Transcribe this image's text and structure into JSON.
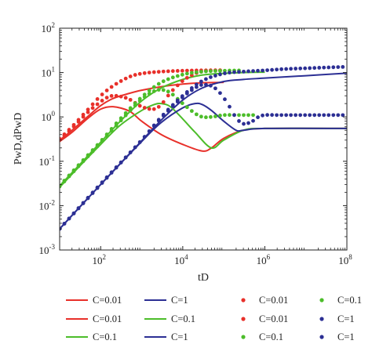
{
  "chart_data": {
    "type": "line",
    "xlabel": "tD",
    "ylabel": "PwD,dPwD",
    "x_scale": "log",
    "y_scale": "log",
    "xlim": [
      10,
      100000000
    ],
    "ylim": [
      0.001,
      100
    ],
    "x_ticks": [
      {
        "base": "10",
        "exp": "2",
        "value": 100
      },
      {
        "base": "10",
        "exp": "4",
        "value": 10000
      },
      {
        "base": "10",
        "exp": "6",
        "value": 1000000
      },
      {
        "base": "10",
        "exp": "8",
        "value": 100000000
      }
    ],
    "y_ticks": [
      {
        "base": "10",
        "exp": "-3",
        "value": 0.001
      },
      {
        "base": "10",
        "exp": "-2",
        "value": 0.01
      },
      {
        "base": "10",
        "exp": "-1",
        "value": 0.1
      },
      {
        "base": "10",
        "exp": "0",
        "value": 1
      },
      {
        "base": "10",
        "exp": "1",
        "value": 10
      },
      {
        "base": "10",
        "exp": "2",
        "value": 100
      }
    ],
    "grid": false,
    "legend_position": "bottom",
    "series": [
      {
        "name": "C=0.01",
        "style": "line",
        "color": "#e8302a",
        "x": [
          10,
          20,
          50,
          100,
          200,
          500,
          1000,
          3000,
          10000,
          30000,
          100000
        ],
        "y": [
          0.3,
          0.5,
          1.05,
          1.8,
          2.6,
          3.4,
          4.0,
          4.8,
          5.5,
          5.9,
          6.0
        ]
      },
      {
        "name": "C=0.01",
        "style": "line",
        "color": "#e8302a",
        "x": [
          10,
          20,
          50,
          100,
          200,
          500,
          1000,
          3000,
          10000,
          30000,
          50000,
          100000,
          300000,
          1000000,
          100000000
        ],
        "y": [
          0.28,
          0.45,
          0.95,
          1.5,
          1.7,
          1.35,
          0.8,
          0.4,
          0.24,
          0.17,
          0.2,
          0.33,
          0.5,
          0.55,
          0.55
        ]
      },
      {
        "name": "C=0.1",
        "style": "line",
        "color": "#4cbd2a",
        "x": [
          10,
          30,
          100,
          300,
          1000,
          3000,
          10000,
          30000,
          100000,
          300000,
          1000000
        ],
        "y": [
          0.028,
          0.082,
          0.27,
          0.8,
          2.3,
          4.5,
          7.0,
          8.8,
          9.6,
          10.0,
          10.2
        ]
      },
      {
        "name": "C=1",
        "style": "line",
        "color": "#2c2f94",
        "x": [
          10,
          100,
          1000,
          3000,
          10000,
          30000,
          100000,
          300000,
          1000000,
          10000000,
          100000000
        ],
        "y": [
          0.003,
          0.03,
          0.29,
          0.85,
          2.4,
          4.5,
          6.3,
          7.0,
          7.5,
          8.5,
          9.7
        ]
      },
      {
        "name": "C=0.1",
        "style": "line",
        "color": "#4cbd2a",
        "x": [
          10,
          30,
          100,
          300,
          1000,
          2000,
          3000,
          5000,
          10000,
          20000,
          50000,
          100000,
          300000,
          1000000,
          100000000
        ],
        "y": [
          0.026,
          0.076,
          0.24,
          0.65,
          1.4,
          1.9,
          2.0,
          1.7,
          0.9,
          0.45,
          0.2,
          0.3,
          0.5,
          0.55,
          0.55
        ]
      },
      {
        "name": "C=1",
        "style": "line",
        "color": "#2c2f94",
        "x": [
          10,
          100,
          1000,
          3000,
          10000,
          20000,
          30000,
          50000,
          100000,
          200000,
          300000,
          1000000,
          100000000
        ],
        "y": [
          0.003,
          0.03,
          0.28,
          0.75,
          1.6,
          2.0,
          1.9,
          1.4,
          0.8,
          0.5,
          0.5,
          0.55,
          0.55
        ]
      },
      {
        "name": "C=0.01",
        "style": "dots",
        "color": "#e8302a",
        "x": [
          10,
          20,
          50,
          100,
          200,
          500,
          1000,
          3000,
          10000,
          30000,
          100000
        ],
        "y": [
          0.32,
          0.6,
          1.5,
          3.0,
          5.0,
          8.0,
          9.5,
          10.5,
          11.0,
          11.2,
          11.3
        ]
      },
      {
        "name": "C=0.01",
        "style": "dots",
        "color": "#e8302a",
        "x": [
          10,
          20,
          50,
          100,
          150,
          200,
          300,
          500,
          1000,
          2000,
          3000,
          5000,
          10000,
          20000,
          30000,
          50000,
          100000
        ],
        "y": [
          0.3,
          0.55,
          1.3,
          2.2,
          2.8,
          3.0,
          2.9,
          2.5,
          1.7,
          1.5,
          1.9,
          3.5,
          6.5,
          9.5,
          10.5,
          11.0,
          11.2
        ]
      },
      {
        "name": "C=0.1",
        "style": "dots",
        "color": "#4cbd2a",
        "x": [
          10,
          30,
          100,
          300,
          1000,
          3000,
          10000,
          30000,
          100000,
          300000
        ],
        "y": [
          0.028,
          0.085,
          0.28,
          0.9,
          2.8,
          6.0,
          9.0,
          10.5,
          11.0,
          11.2
        ]
      },
      {
        "name": "C=0.1",
        "style": "dots",
        "color": "#4cbd2a",
        "x": [
          10,
          30,
          100,
          300,
          1000,
          2000,
          3000,
          5000,
          10000,
          20000,
          30000,
          50000,
          100000,
          200000,
          300000,
          600000
        ],
        "y": [
          0.027,
          0.08,
          0.26,
          0.8,
          2.5,
          3.8,
          4.1,
          3.5,
          2.0,
          1.2,
          1.0,
          1.0,
          1.1,
          1.1,
          1.1,
          1.1
        ]
      },
      {
        "name": "C=1",
        "style": "dots",
        "color": "#2c2f94",
        "x": [
          10,
          100,
          1000,
          3000,
          10000,
          30000,
          100000,
          300000,
          1000000,
          3000000,
          10000000,
          30000000,
          100000000
        ],
        "y": [
          0.003,
          0.031,
          0.3,
          1.0,
          3.0,
          6.5,
          9.5,
          10.5,
          11.2,
          12.0,
          12.5,
          13.0,
          13.5
        ]
      },
      {
        "name": "C=1",
        "style": "dots",
        "color": "#2c2f94",
        "x": [
          10,
          100,
          1000,
          3000,
          10000,
          20000,
          30000,
          50000,
          70000,
          100000,
          150000,
          200000,
          300000,
          500000,
          700000,
          1000000,
          2000000,
          5000000,
          10000000,
          30000000,
          100000000
        ],
        "y": [
          0.003,
          0.03,
          0.3,
          0.95,
          2.8,
          4.5,
          5.3,
          5.0,
          4.0,
          2.7,
          1.5,
          0.95,
          0.7,
          0.8,
          1.0,
          1.1,
          1.1,
          1.1,
          1.1,
          1.1,
          1.1
        ]
      }
    ]
  }
}
